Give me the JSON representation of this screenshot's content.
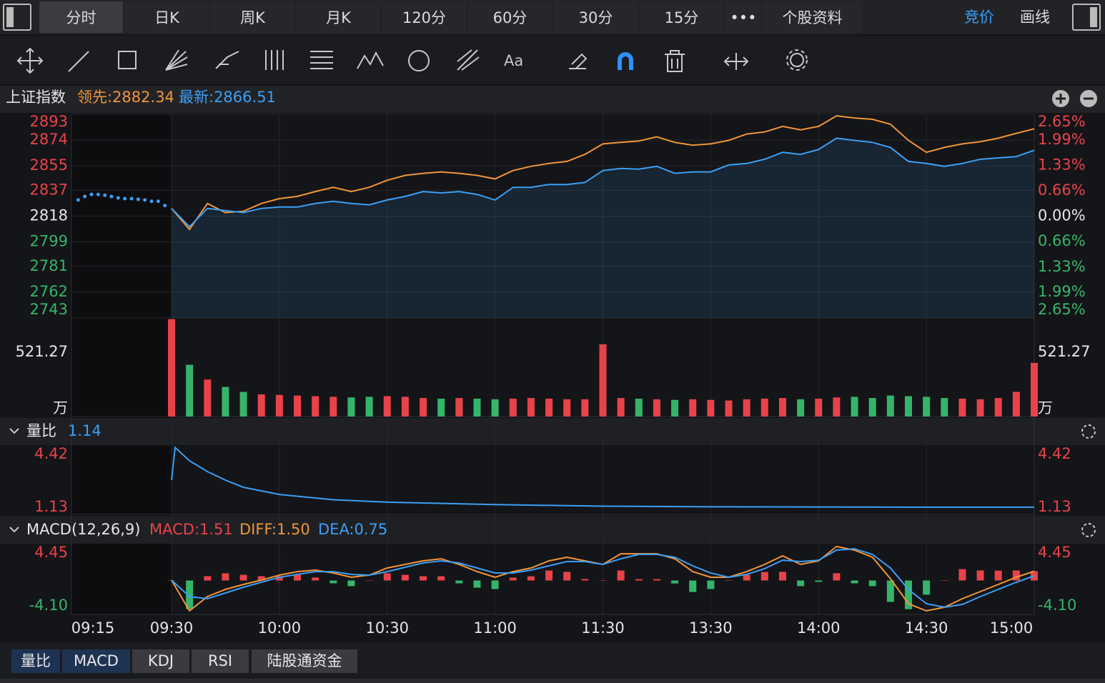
{
  "tabs": [
    "分时",
    "日K",
    "周K",
    "月K",
    "120分",
    "60分",
    "30分",
    "15分",
    "•••",
    "个股资料"
  ],
  "right_tabs": [
    "竞价",
    "画线"
  ],
  "toolbar": {
    "text": "Aa"
  },
  "chart_data": [
    {
      "type": "line",
      "title": "上证指数",
      "x": [
        0,
        5,
        10,
        15,
        20,
        25,
        30,
        35,
        40,
        45,
        50,
        55,
        60,
        65,
        70,
        75,
        80,
        85,
        90,
        95,
        100,
        105,
        110,
        115,
        120,
        125,
        130,
        135,
        140,
        145,
        150,
        155,
        160,
        165,
        170,
        175,
        180,
        185,
        190,
        195,
        200,
        205,
        210,
        215,
        220,
        225,
        230,
        235,
        240
      ],
      "xlim": [
        -15,
        240
      ],
      "ylim": [
        2743,
        2893
      ],
      "yticks": [
        2893,
        2874,
        2855,
        2837,
        2818,
        2799,
        2781,
        2762,
        2743
      ],
      "y2lim": [
        -2.66,
        2.66
      ],
      "y2ticks": [
        {
          "value": 2.65,
          "label": "2.65%"
        },
        {
          "value": 1.99,
          "label": "1.99%"
        },
        {
          "value": 1.33,
          "label": "1.33%"
        },
        {
          "value": 0.66,
          "label": "0.66%"
        },
        {
          "value": 0,
          "label": "0.00%"
        },
        {
          "value": -0.66,
          "label": "0.66%"
        },
        {
          "value": -1.33,
          "label": "1.33%"
        },
        {
          "value": -1.99,
          "label": "1.99%"
        },
        {
          "value": -2.65,
          "label": "2.65%"
        }
      ],
      "series": [
        {
          "name": "领先:2882.34",
          "color": "#f0953a",
          "values": [
            2823.7,
            2808.2,
            2827.3,
            2820.6,
            2821.6,
            2827.3,
            2830.9,
            2832.5,
            2836.1,
            2839.2,
            2836.1,
            2839.2,
            2844.4,
            2848.0,
            2849.5,
            2850.6,
            2849.5,
            2848.0,
            2845.4,
            2851.6,
            2854.7,
            2856.8,
            2858.3,
            2863.5,
            2871.2,
            2872.3,
            2873.3,
            2876.4,
            2872.3,
            2870.2,
            2871.2,
            2873.8,
            2878.5,
            2880.0,
            2884.1,
            2881.6,
            2884.1,
            2891.9,
            2890.3,
            2889.3,
            2885.7,
            2873.8,
            2865.0,
            2868.6,
            2871.2,
            2872.8,
            2875.4,
            2879.0,
            2882.34
          ]
        },
        {
          "name": "最新:2866.51",
          "color": "#3a9ff5",
          "values": [
            2823.7,
            2810.2,
            2823.7,
            2822.1,
            2820.6,
            2823.7,
            2824.7,
            2824.7,
            2827.3,
            2828.9,
            2827.3,
            2826.3,
            2829.9,
            2832.5,
            2836.1,
            2835.1,
            2836.1,
            2834.0,
            2829.9,
            2839.2,
            2839.2,
            2841.3,
            2841.3,
            2842.8,
            2851.6,
            2853.1,
            2852.6,
            2854.7,
            2849.5,
            2850.6,
            2850.6,
            2855.7,
            2856.8,
            2859.9,
            2865.0,
            2863.5,
            2867.1,
            2875.4,
            2873.8,
            2872.3,
            2868.6,
            2858.3,
            2856.8,
            2854.7,
            2856.8,
            2859.9,
            2860.9,
            2861.9,
            2866.51
          ]
        }
      ],
      "auction": {
        "color": "#3a9ff5",
        "x": [
          -14,
          -13,
          -12,
          -11,
          -10,
          -9,
          -8,
          -7,
          -6,
          -5,
          -4,
          -3,
          -2,
          -1
        ],
        "values": [
          2829.9,
          2832.5,
          2834.0,
          2834.0,
          2833.4,
          2832.5,
          2831.4,
          2830.9,
          2830.9,
          2830.4,
          2829.9,
          2828.9,
          2828.9,
          2825.8
        ]
      }
    },
    {
      "type": "bar",
      "x": [
        0,
        5,
        10,
        15,
        20,
        25,
        30,
        35,
        40,
        45,
        50,
        55,
        60,
        65,
        70,
        75,
        80,
        85,
        90,
        95,
        100,
        105,
        110,
        115,
        120,
        125,
        130,
        135,
        140,
        145,
        150,
        155,
        160,
        165,
        170,
        175,
        180,
        185,
        190,
        195,
        200,
        205,
        210,
        215,
        220,
        225,
        230,
        235,
        240
      ],
      "values": [
        790,
        420,
        300,
        240,
        200,
        180,
        175,
        170,
        165,
        160,
        155,
        160,
        165,
        160,
        150,
        145,
        150,
        145,
        140,
        145,
        150,
        145,
        140,
        140,
        586,
        150,
        145,
        140,
        135,
        140,
        135,
        130,
        140,
        145,
        150,
        140,
        145,
        155,
        160,
        150,
        170,
        165,
        160,
        150,
        145,
        140,
        150,
        200,
        435
      ],
      "xlim": [
        -15,
        240
      ],
      "ylim": [
        0,
        800
      ],
      "yticks": [
        521.27
      ],
      "unit": "万",
      "up_color": "#e8434a",
      "down_color": "#35b56a"
    },
    {
      "type": "line",
      "title": "量比",
      "value": 1.14,
      "color": "#3a9ff5",
      "x": [
        0,
        1,
        5,
        10,
        15,
        20,
        30,
        45,
        60,
        90,
        120,
        150,
        180,
        210,
        240
      ],
      "values": [
        2.82,
        4.85,
        4.02,
        3.35,
        2.82,
        2.37,
        1.93,
        1.6,
        1.45,
        1.3,
        1.2,
        1.16,
        1.15,
        1.14,
        1.14
      ],
      "xlim": [
        -15,
        240
      ],
      "ylim": [
        0.69,
        4.95
      ],
      "yticks": [
        4.42,
        1.13
      ]
    },
    {
      "type": "macd",
      "title": "MACD(12,26,9)",
      "x": [
        0,
        5,
        10,
        15,
        20,
        25,
        30,
        35,
        40,
        45,
        50,
        55,
        60,
        65,
        70,
        75,
        80,
        85,
        90,
        95,
        100,
        105,
        110,
        115,
        120,
        125,
        130,
        135,
        140,
        145,
        150,
        155,
        160,
        165,
        170,
        175,
        180,
        185,
        190,
        195,
        200,
        205,
        210,
        215,
        220,
        225,
        230,
        235,
        240
      ],
      "xlim": [
        -15,
        240
      ],
      "ylim": [
        -5.49,
        5.84
      ],
      "yticks": [
        4.45,
        {
          "value": -4.1,
          "label": "-4.10"
        }
      ],
      "xticks": [
        {
          "value": -15,
          "label": "09:15"
        },
        {
          "value": 0,
          "label": "09:30"
        },
        {
          "value": 30,
          "label": "10:00"
        },
        {
          "value": 60,
          "label": "10:30"
        },
        {
          "value": 90,
          "label": "11:00"
        },
        {
          "value": 120,
          "label": "11:30"
        },
        {
          "value": 150,
          "label": "13:30"
        },
        {
          "value": 180,
          "label": "14:00"
        },
        {
          "value": 210,
          "label": "14:30"
        },
        {
          "value": 240,
          "label": "15:00"
        }
      ],
      "series": [
        {
          "name": "MACD:1.51",
          "color": "#e8434a",
          "down_color": "#35b56a",
          "values": [
            0,
            -4.62,
            0.7,
            1.16,
            0.92,
            0.7,
            0.7,
            0.92,
            0.48,
            -0.46,
            -0.92,
            0,
            1.16,
            0.92,
            0.7,
            0.68,
            -0.46,
            -1.16,
            -1.38,
            0.46,
            0.68,
            1.62,
            1.4,
            0.24,
            0,
            1.62,
            0.22,
            0.22,
            -0.48,
            -1.86,
            -1.38,
            0,
            0.92,
            1.38,
            1.4,
            -0.92,
            -0.22,
            1.18,
            -0.46,
            -0.92,
            -3.46,
            -4.64,
            -2.3,
            0,
            1.84,
            1.62,
            1.6,
            1.62,
            1.51
          ]
        },
        {
          "name": "DIFF:1.50",
          "color": "#f0953a",
          "values": [
            0.06,
            -4.91,
            -2.6,
            -1.44,
            -0.64,
            0.06,
            0.87,
            1.44,
            1.68,
            1.21,
            0.52,
            0.87,
            2.02,
            2.6,
            3.18,
            3.52,
            2.6,
            1.44,
            0.52,
            1.44,
            2.02,
            3.18,
            3.76,
            3.18,
            2.6,
            4.33,
            4.33,
            4.33,
            3.52,
            1.44,
            0.52,
            0.52,
            1.44,
            2.6,
            3.99,
            2.6,
            3.18,
            5.5,
            4.91,
            3.76,
            0.29,
            -3.76,
            -4.91,
            -4.33,
            -2.95,
            -1.79,
            -0.64,
            0.52,
            1.5
          ]
        },
        {
          "name": "DEA:0.75",
          "color": "#3a9ff5",
          "values": [
            0.06,
            -2.6,
            -2.95,
            -2.02,
            -1.1,
            -0.29,
            0.52,
            0.98,
            1.44,
            1.44,
            0.98,
            0.87,
            1.44,
            2.14,
            2.83,
            3.18,
            2.83,
            2.02,
            1.21,
            1.21,
            1.68,
            2.37,
            3.06,
            3.06,
            2.6,
            3.52,
            4.22,
            4.22,
            3.76,
            2.37,
            1.21,
            0.52,
            0.98,
            1.91,
            3.29,
            3.06,
            3.29,
            4.91,
            5.14,
            4.22,
            2.02,
            -1.44,
            -3.76,
            -4.33,
            -3.87,
            -2.6,
            -1.44,
            -0.29,
            0.75
          ]
        }
      ]
    }
  ],
  "indicator_tabs": [
    "量比",
    "MACD",
    "KDJ",
    "RSI",
    "陆股通资金"
  ]
}
